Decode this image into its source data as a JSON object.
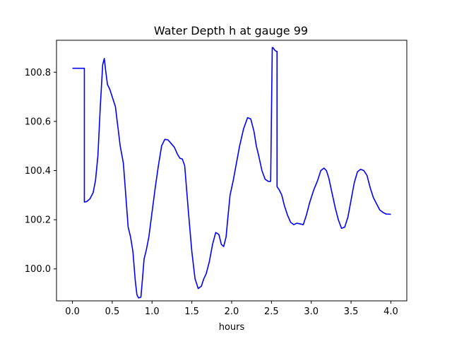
{
  "chart_data": {
    "type": "line",
    "title": "Water Depth h at gauge 99",
    "xlabel": "hours",
    "ylabel": "",
    "xlim": [
      -0.2,
      4.2
    ],
    "ylim": [
      99.87,
      100.93
    ],
    "grid": false,
    "legend": "none",
    "x_ticks": [
      {
        "value": 0.0,
        "label": "0.0"
      },
      {
        "value": 0.5,
        "label": "0.5"
      },
      {
        "value": 1.0,
        "label": "1.0"
      },
      {
        "value": 1.5,
        "label": "1.5"
      },
      {
        "value": 2.0,
        "label": "2.0"
      },
      {
        "value": 2.5,
        "label": "2.5"
      },
      {
        "value": 3.0,
        "label": "3.0"
      },
      {
        "value": 3.5,
        "label": "3.5"
      },
      {
        "value": 4.0,
        "label": "4.0"
      }
    ],
    "y_ticks": [
      {
        "value": 100.0,
        "label": "100.0"
      },
      {
        "value": 100.2,
        "label": "100.2"
      },
      {
        "value": 100.4,
        "label": "100.4"
      },
      {
        "value": 100.6,
        "label": "100.6"
      },
      {
        "value": 100.8,
        "label": "100.8"
      }
    ],
    "series": [
      {
        "color": "#0000ff",
        "x": [
          0.0,
          0.07,
          0.15,
          0.15,
          0.18,
          0.22,
          0.26,
          0.29,
          0.32,
          0.35,
          0.38,
          0.4,
          0.42,
          0.44,
          0.47,
          0.5,
          0.54,
          0.57,
          0.6,
          0.64,
          0.67,
          0.7,
          0.73,
          0.76,
          0.79,
          0.81,
          0.83,
          0.86,
          0.88,
          0.9,
          0.93,
          0.96,
          1.0,
          1.04,
          1.08,
          1.12,
          1.16,
          1.2,
          1.24,
          1.28,
          1.32,
          1.35,
          1.38,
          1.41,
          1.43,
          1.46,
          1.5,
          1.54,
          1.58,
          1.62,
          1.65,
          1.68,
          1.72,
          1.76,
          1.8,
          1.84,
          1.87,
          1.9,
          1.93,
          1.95,
          1.98,
          2.02,
          2.06,
          2.1,
          2.15,
          2.2,
          2.24,
          2.28,
          2.31,
          2.34,
          2.38,
          2.42,
          2.46,
          2.49,
          2.51,
          2.52,
          2.53,
          2.54,
          2.56,
          2.57,
          2.57,
          2.6,
          2.63,
          2.66,
          2.7,
          2.74,
          2.78,
          2.82,
          2.86,
          2.9,
          2.94,
          2.98,
          3.03,
          3.08,
          3.12,
          3.16,
          3.19,
          3.22,
          3.26,
          3.3,
          3.34,
          3.38,
          3.42,
          3.46,
          3.5,
          3.54,
          3.58,
          3.62,
          3.66,
          3.7,
          3.74,
          3.78,
          3.82,
          3.86,
          3.9,
          3.94,
          3.97,
          4.0
        ],
        "y": [
          100.816,
          100.816,
          100.816,
          100.272,
          100.274,
          100.285,
          100.31,
          100.36,
          100.46,
          100.66,
          100.83,
          100.856,
          100.8,
          100.75,
          100.73,
          100.7,
          100.66,
          100.58,
          100.5,
          100.43,
          100.3,
          100.17,
          100.13,
          100.07,
          99.95,
          99.895,
          99.882,
          99.885,
          99.96,
          100.04,
          100.08,
          100.13,
          100.23,
          100.33,
          100.42,
          100.5,
          100.527,
          100.525,
          100.51,
          100.495,
          100.466,
          100.45,
          100.447,
          100.42,
          100.34,
          100.22,
          100.07,
          99.96,
          99.92,
          99.93,
          99.96,
          99.98,
          100.03,
          100.1,
          100.148,
          100.14,
          100.1,
          100.091,
          100.13,
          100.2,
          100.3,
          100.36,
          100.43,
          100.5,
          100.57,
          100.615,
          100.61,
          100.56,
          100.5,
          100.46,
          100.4,
          100.365,
          100.356,
          100.356,
          100.9,
          100.9,
          100.895,
          100.89,
          100.885,
          100.885,
          100.335,
          100.32,
          100.3,
          100.26,
          100.22,
          100.19,
          100.18,
          100.186,
          100.183,
          100.18,
          100.22,
          100.27,
          100.32,
          100.36,
          100.4,
          100.41,
          100.4,
          100.37,
          100.31,
          100.25,
          100.2,
          100.165,
          100.17,
          100.21,
          100.28,
          100.35,
          100.395,
          100.405,
          100.4,
          100.38,
          100.33,
          100.29,
          100.265,
          100.24,
          100.23,
          100.223,
          100.223,
          100.222
        ]
      }
    ]
  }
}
